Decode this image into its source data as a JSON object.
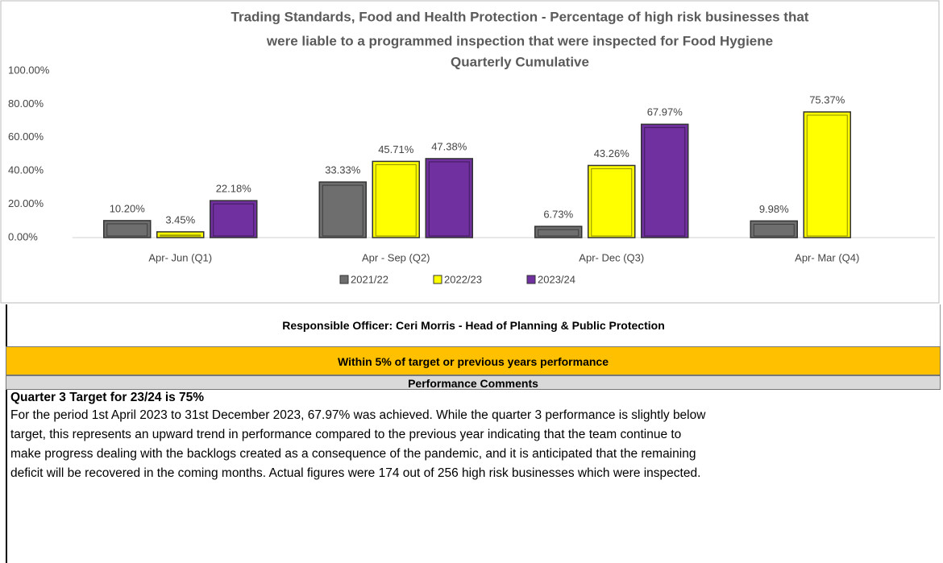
{
  "chart_data": {
    "type": "bar",
    "title": [
      "Trading Standards, Food and Health Protection - Percentage of high risk businesses that",
      "were liable to a programmed inspection that were inspected for Food Hygiene",
      "Quarterly Cumulative"
    ],
    "categories": [
      "Apr- Jun  (Q1)",
      "Apr - Sep  (Q2)",
      "Apr- Dec  (Q3)",
      "Apr- Mar  (Q4)"
    ],
    "series": [
      {
        "name": "2021/22",
        "color": "#6e6e6e",
        "values": [
          10.2,
          33.33,
          6.73,
          9.98
        ],
        "value_labels": [
          "10.20%",
          "33.33%",
          "6.73%",
          "9.98%"
        ]
      },
      {
        "name": "2022/23",
        "color": "#ffff00",
        "values": [
          3.45,
          45.71,
          43.26,
          75.37
        ],
        "value_labels": [
          "3.45%",
          "45.71%",
          "43.26%",
          "75.37%"
        ]
      },
      {
        "name": "2023/24",
        "color": "#7030a0",
        "values": [
          22.18,
          47.38,
          67.97,
          null
        ],
        "value_labels": [
          "22.18%",
          "47.38%",
          "67.97%",
          null
        ]
      }
    ],
    "ylim": [
      0,
      100
    ],
    "yticks": [
      {
        "value": 0,
        "label": "0.00%"
      },
      {
        "value": 20,
        "label": "20.00%"
      },
      {
        "value": 40,
        "label": "40.00%"
      },
      {
        "value": 60,
        "label": "60.00%"
      },
      {
        "value": 80,
        "label": "80.00%"
      },
      {
        "value": 100,
        "label": "100.00%"
      }
    ],
    "legend": "bottom"
  },
  "officer": "Responsible Officer:  Ceri Morris - Head of Planning & Public Protection",
  "status": "Within 5% of target or previous years performance",
  "comments": {
    "heading": "Performance Comments",
    "target": "Quarter 3 Target for 23/24 is 75%",
    "lines": [
      "For the period 1st April 2023 to 31st December 2023, 67.97% was achieved. While the quarter 3 performance is slightly below",
      "target, this represents an upward trend in performance compared to the previous year indicating that the team continue to",
      "make progress dealing with the backlogs created as a consequence of the pandemic, and it is anticipated that the remaining",
      "deficit will be recovered in the coming months. Actual figures were 174 out of 256 high risk businesses which were inspected."
    ]
  }
}
